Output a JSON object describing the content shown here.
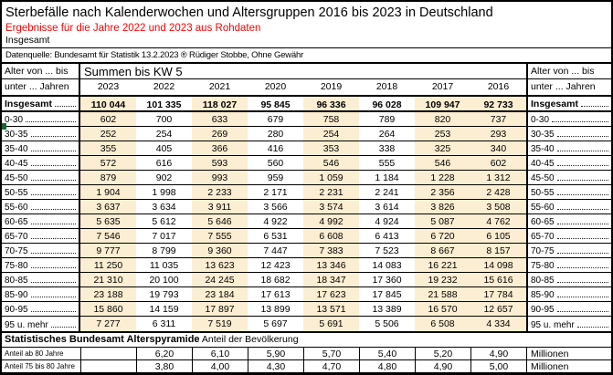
{
  "header": {
    "title": "Sterbefälle nach Kalenderwochen und Altersgruppen 2016 bis 2023 in Deutschland",
    "subtitle_red": "Ergebnisse für die Jahre 2022 und 2023 aus Rohdaten",
    "scope_label": "Insgesamt",
    "source_note": "Datenquelle: Bundesamt für Statistik 13.2.2023 ® Rüdiger Stobbe, Ohne Gewähr"
  },
  "table": {
    "corner_left_line1": "Alter von ... bis",
    "corner_left_line2": "unter ... Jahren",
    "corner_right_line1": "Alter von ... bis",
    "corner_right_line2": "unter ... Jahren",
    "span_header": "Summen bis KW 5",
    "years": [
      "2023",
      "2022",
      "2021",
      "2020",
      "2019",
      "2018",
      "2017",
      "2016"
    ],
    "highlighted_years": [
      "2023",
      "2021",
      "2019",
      "2017",
      "2016"
    ],
    "total_row": {
      "label_left": "Insgesamt",
      "label_right": "Insgesamt",
      "values": [
        "110 044",
        "101 335",
        "118 027",
        "95 845",
        "96 336",
        "96 028",
        "109 947",
        "92 733"
      ]
    },
    "rows": [
      {
        "label": "0-30",
        "values": [
          "602",
          "700",
          "633",
          "679",
          "758",
          "789",
          "820",
          "737"
        ]
      },
      {
        "label": "30-35",
        "values": [
          "252",
          "254",
          "269",
          "280",
          "254",
          "264",
          "253",
          "293"
        ]
      },
      {
        "label": "35-40",
        "values": [
          "355",
          "405",
          "366",
          "416",
          "353",
          "338",
          "325",
          "340"
        ]
      },
      {
        "label": "40-45",
        "values": [
          "572",
          "616",
          "593",
          "560",
          "546",
          "555",
          "546",
          "602"
        ]
      },
      {
        "label": "45-50",
        "values": [
          "879",
          "902",
          "993",
          "959",
          "1 059",
          "1 184",
          "1 228",
          "1 312"
        ]
      },
      {
        "label": "50-55",
        "values": [
          "1 904",
          "1 998",
          "2 233",
          "2 171",
          "2 231",
          "2 241",
          "2 356",
          "2 428"
        ]
      },
      {
        "label": "55-60",
        "values": [
          "3 637",
          "3 634",
          "3 911",
          "3 566",
          "3 574",
          "3 614",
          "3 826",
          "3 508"
        ]
      },
      {
        "label": "60-65",
        "values": [
          "5 635",
          "5 612",
          "5 646",
          "4 922",
          "4 992",
          "4 924",
          "5 087",
          "4 762"
        ]
      },
      {
        "label": "65-70",
        "values": [
          "7 546",
          "7 017",
          "7 555",
          "6 531",
          "6 608",
          "6 413",
          "6 720",
          "6 105"
        ]
      },
      {
        "label": "70-75",
        "values": [
          "9 777",
          "8 799",
          "9 360",
          "7 447",
          "7 383",
          "7 523",
          "8 667",
          "8 157"
        ]
      },
      {
        "label": "75-80",
        "values": [
          "11 250",
          "11 035",
          "13 623",
          "12 423",
          "13 346",
          "14 083",
          "16 221",
          "14 098"
        ]
      },
      {
        "label": "80-85",
        "values": [
          "21 310",
          "20 100",
          "24 245",
          "18 682",
          "18 347",
          "17 360",
          "19 232",
          "15 616"
        ]
      },
      {
        "label": "85-90",
        "values": [
          "23 188",
          "19 793",
          "23 184",
          "17 613",
          "17 623",
          "17 845",
          "21 588",
          "17 784"
        ]
      },
      {
        "label": "90-95",
        "values": [
          "15 860",
          "14 159",
          "17 897",
          "13 899",
          "13 571",
          "13 389",
          "16 570",
          "12 657"
        ]
      },
      {
        "label": "95 u. mehr",
        "values": [
          "7 277",
          "6 311",
          "7 519",
          "5 697",
          "5 691",
          "5 506",
          "6 508",
          "4 334"
        ]
      }
    ]
  },
  "footer": {
    "title_bold": "Statistisches Bundesamt Alterspyramide",
    "title_rest": "Anteil der Bevölkerung",
    "rows": [
      {
        "label": "Anteil ab 80 Jahre",
        "values": [
          "",
          "6,20",
          "6,10",
          "5,90",
          "5,70",
          "5,40",
          "5,20",
          "4,90"
        ],
        "unit": "Millionen"
      },
      {
        "label": "Anteil 75 bis 80 Jahre",
        "values": [
          "",
          "3,80",
          "4,00",
          "4,30",
          "4,70",
          "4,80",
          "4,90",
          "5,00"
        ],
        "unit": "Millionen"
      }
    ]
  },
  "colors": {
    "highlight_column": "#fceed2",
    "subtitle_red": "#ff0000",
    "border": "#000000",
    "bottom_stripe": "#6e2a24",
    "marker_green": "#17652f"
  }
}
